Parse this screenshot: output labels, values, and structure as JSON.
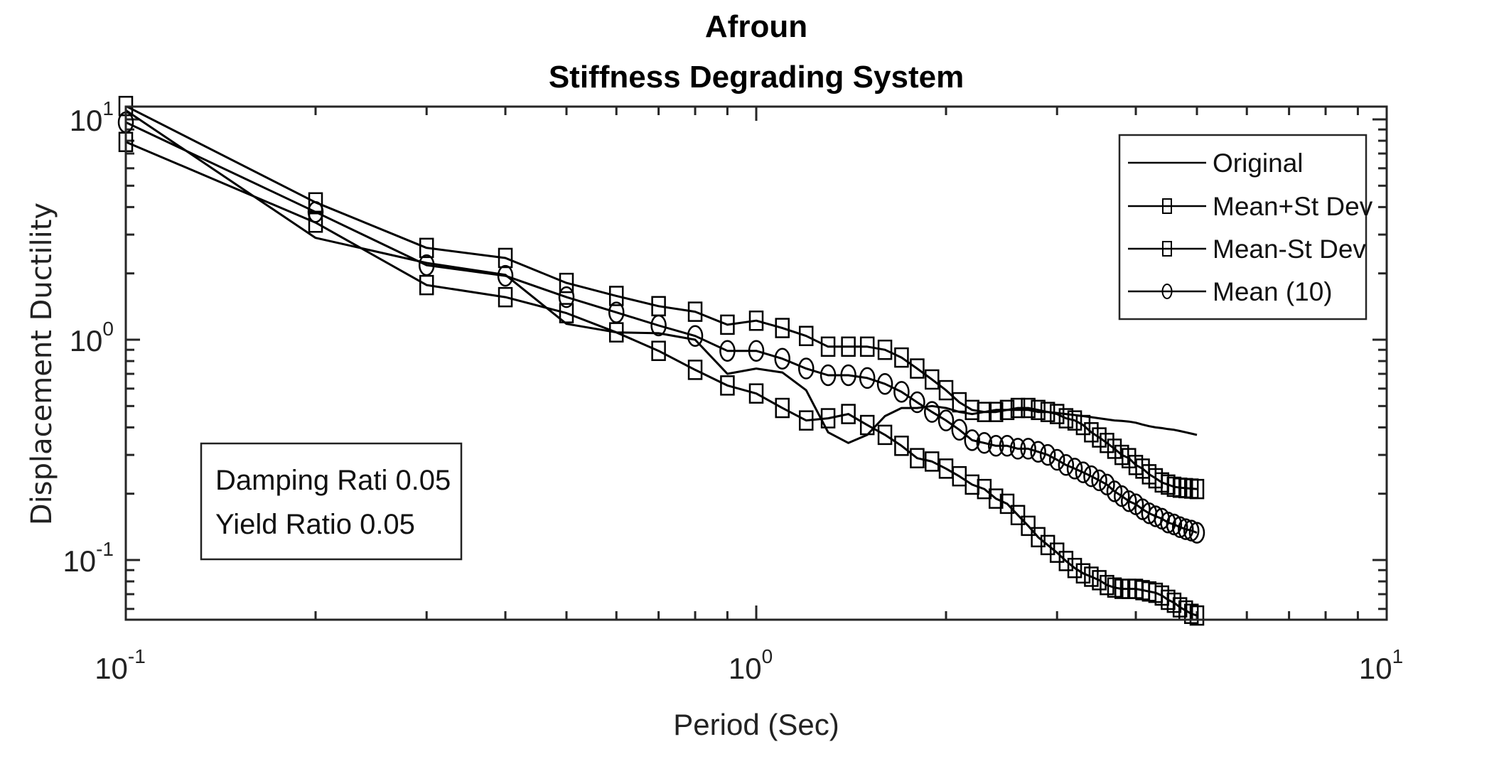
{
  "chart_data": {
    "type": "line",
    "title": "Afroun",
    "subtitle": "Stiffness Degrading System",
    "xlabel": "Period (Sec)",
    "ylabel": "Displacement Ductility",
    "xscale": "log",
    "yscale": "log",
    "xlim": [
      0.1,
      10
    ],
    "ylim": [
      0.0536,
      11.43
    ],
    "grid": false,
    "box": true,
    "x_ticks": [
      {
        "base": "10",
        "exp": "-1",
        "value": 0.1
      },
      {
        "base": "10",
        "exp": "0",
        "value": 1
      },
      {
        "base": "10",
        "exp": "1",
        "value": 10
      }
    ],
    "y_ticks": [
      {
        "base": "10",
        "exp": "-1",
        "value": 0.1
      },
      {
        "base": "10",
        "exp": "0",
        "value": 1
      },
      {
        "base": "10",
        "exp": "1",
        "value": 10
      }
    ],
    "legend": {
      "placement": "top-right",
      "entries": [
        "Original",
        "Mean+St Dev",
        "Mean-St Dev",
        "Mean (10)"
      ]
    },
    "annotation": {
      "lines": [
        "Damping Rati 0.05",
        "Yield Ratio 0.05"
      ],
      "placement": "lower-left"
    },
    "x": [
      0.1,
      0.2,
      0.3,
      0.4,
      0.5,
      0.6,
      0.7,
      0.8,
      0.9,
      1.0,
      1.1,
      1.2,
      1.3,
      1.4,
      1.5,
      1.6,
      1.7,
      1.8,
      1.9,
      2.0,
      2.1,
      2.2,
      2.3,
      2.4,
      2.5,
      2.6,
      2.7,
      2.8,
      2.9,
      3.0,
      3.1,
      3.2,
      3.3,
      3.4,
      3.5,
      3.6,
      3.7,
      3.8,
      3.9,
      4.0,
      4.1,
      4.2,
      4.3,
      4.4,
      4.5,
      4.6,
      4.7,
      4.8,
      4.9,
      5.0
    ],
    "series": [
      {
        "name": "Original",
        "marker": "none",
        "color": "#000000",
        "values": [
          11.0,
          2.9,
          2.23,
          1.97,
          1.18,
          1.08,
          1.07,
          1.0,
          0.7,
          0.74,
          0.71,
          0.59,
          0.38,
          0.34,
          0.37,
          0.45,
          0.49,
          0.49,
          0.5,
          0.49,
          0.47,
          0.46,
          0.47,
          0.48,
          0.48,
          0.48,
          0.48,
          0.47,
          0.47,
          0.465,
          0.46,
          0.455,
          0.45,
          0.445,
          0.44,
          0.435,
          0.43,
          0.428,
          0.425,
          0.42,
          0.412,
          0.405,
          0.4,
          0.397,
          0.393,
          0.39,
          0.385,
          0.38,
          0.375,
          0.37
        ]
      },
      {
        "name": "Mean+St Dev",
        "marker": "square",
        "color": "#000000",
        "values": [
          11.5,
          4.2,
          2.61,
          2.35,
          1.81,
          1.58,
          1.42,
          1.34,
          1.17,
          1.22,
          1.13,
          1.04,
          0.93,
          0.93,
          0.93,
          0.9,
          0.83,
          0.74,
          0.66,
          0.59,
          0.52,
          0.48,
          0.47,
          0.47,
          0.48,
          0.49,
          0.49,
          0.48,
          0.47,
          0.46,
          0.44,
          0.43,
          0.41,
          0.38,
          0.36,
          0.34,
          0.32,
          0.3,
          0.29,
          0.27,
          0.26,
          0.245,
          0.235,
          0.225,
          0.22,
          0.215,
          0.213,
          0.212,
          0.211,
          0.21
        ]
      },
      {
        "name": "Mean-St Dev",
        "marker": "square",
        "color": "#000000",
        "values": [
          7.9,
          3.4,
          1.77,
          1.56,
          1.32,
          1.08,
          0.89,
          0.73,
          0.62,
          0.57,
          0.49,
          0.43,
          0.44,
          0.46,
          0.41,
          0.37,
          0.33,
          0.29,
          0.28,
          0.26,
          0.24,
          0.22,
          0.21,
          0.19,
          0.18,
          0.16,
          0.143,
          0.127,
          0.117,
          0.108,
          0.099,
          0.092,
          0.087,
          0.084,
          0.081,
          0.077,
          0.075,
          0.074,
          0.074,
          0.074,
          0.073,
          0.072,
          0.071,
          0.069,
          0.066,
          0.064,
          0.061,
          0.059,
          0.057,
          0.056
        ]
      },
      {
        "name": "Mean (10)",
        "marker": "circle",
        "color": "#000000",
        "values": [
          9.7,
          3.8,
          2.18,
          1.95,
          1.56,
          1.33,
          1.16,
          1.04,
          0.89,
          0.89,
          0.82,
          0.74,
          0.69,
          0.69,
          0.67,
          0.63,
          0.58,
          0.52,
          0.47,
          0.43,
          0.39,
          0.35,
          0.34,
          0.33,
          0.33,
          0.32,
          0.32,
          0.31,
          0.3,
          0.285,
          0.27,
          0.26,
          0.25,
          0.24,
          0.23,
          0.22,
          0.205,
          0.195,
          0.185,
          0.179,
          0.17,
          0.163,
          0.158,
          0.154,
          0.148,
          0.145,
          0.141,
          0.138,
          0.136,
          0.133
        ]
      }
    ]
  }
}
